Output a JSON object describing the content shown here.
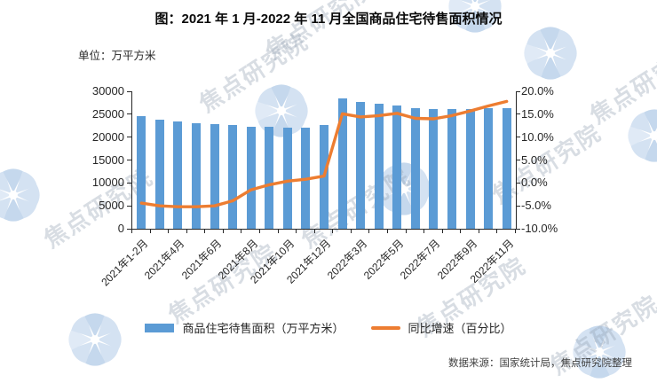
{
  "page": {
    "title": "图：2021 年 1 月-2022 年 11 月全国商品住宅待售面积情况",
    "unit_label": "单位：万平方米",
    "source": "数据来源：国家统计局，焦点研究院整理"
  },
  "watermark": {
    "text": "焦点研究院",
    "logo_color": "#cdddf0",
    "text_color": "#9aa7b8"
  },
  "legend": [
    {
      "label": "商品住宅待售面积（万平方米）",
      "type": "bar",
      "color": "#5B9BD5"
    },
    {
      "label": "同比增速（百分比）",
      "type": "line",
      "color": "#ED7D31"
    }
  ],
  "chart_data": {
    "type": "bar+line",
    "title": "图：2021 年 1 月-2022 年 11 月全国商品住宅待售面积情况",
    "unit": "万平方米",
    "grid": "off",
    "legend_position": "bottom",
    "categories": [
      "2021年1-2月",
      "2021年3月",
      "2021年4月",
      "2021年5月",
      "2021年6月",
      "2021年7月",
      "2021年8月",
      "2021年9月",
      "2021年10月",
      "2021年11月",
      "2021年12月",
      "2022年1-2月",
      "2022年3月",
      "2022年4月",
      "2022年5月",
      "2022年6月",
      "2022年7月",
      "2022年8月",
      "2022年9月",
      "2022年10月",
      "2022年11月"
    ],
    "x_tick_label_every": 2,
    "x_tick_labels_shown": [
      "2021年1-2月",
      "2021年4月",
      "2021年6月",
      "2021年8月",
      "2021年10月",
      "2021年12月",
      "2022年3月",
      "2022年5月",
      "2022年7月",
      "2022年9月",
      "2022年11月"
    ],
    "series": [
      {
        "name": "商品住宅待售面积（万平方米）",
        "type": "bar",
        "axis": "left",
        "color": "#5B9BD5",
        "values": [
          24600,
          23900,
          23450,
          23050,
          22750,
          22550,
          22350,
          22250,
          22150,
          22100,
          22700,
          28400,
          27600,
          27200,
          26950,
          26250,
          26150,
          26050,
          26100,
          26300,
          26400
        ]
      },
      {
        "name": "同比增速（百分比）",
        "type": "line",
        "axis": "right",
        "color": "#ED7D31",
        "values": [
          -4.4,
          -5.0,
          -5.2,
          -5.2,
          -5.0,
          -3.9,
          -1.5,
          -0.4,
          0.4,
          0.8,
          1.5,
          15.1,
          14.4,
          14.7,
          15.2,
          14.1,
          14.0,
          14.7,
          15.7,
          16.8,
          17.8
        ]
      }
    ],
    "left_axis": {
      "label": "万平方米",
      "min": 0,
      "max": 30000,
      "step": 5000,
      "tick_labels": [
        "0",
        "5000",
        "10000",
        "15000",
        "20000",
        "25000",
        "30000"
      ]
    },
    "right_axis": {
      "label": "百分比",
      "min": -10,
      "max": 20,
      "step": 5,
      "tick_labels": [
        "-10.0%",
        "-5.0%",
        "0.0%",
        "5.0%",
        "10.0%",
        "15.0%",
        "20.0%"
      ]
    }
  }
}
